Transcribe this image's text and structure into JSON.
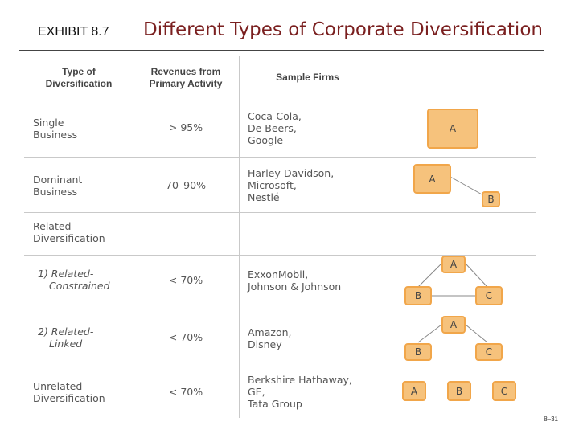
{
  "header": {
    "exhibit": "EXHIBIT 8.7",
    "title": "Different Types of Corporate Diversification"
  },
  "columns": {
    "type": [
      "Type of",
      "Diversification"
    ],
    "revenue": [
      "Revenues from",
      "Primary Activity"
    ],
    "firms": "Sample Firms"
  },
  "rows": [
    {
      "type": [
        "Single",
        "Business"
      ],
      "revenue": "> 95%",
      "firms": [
        "Coca-Cola,",
        "De Beers,",
        "Google"
      ],
      "boxes": [
        "A"
      ]
    },
    {
      "type": [
        "Dominant",
        "Business"
      ],
      "revenue": "70–90%",
      "firms": [
        "Harley-Davidson,",
        "Microsoft,",
        "Nestlé"
      ],
      "boxes": [
        "A",
        "B"
      ]
    },
    {
      "type": [
        "Related",
        "Diversification"
      ],
      "revenue": "",
      "firms": []
    },
    {
      "type": [
        "1) Related-",
        "Constrained"
      ],
      "revenue": "< 70%",
      "firms": [
        "ExxonMobil,",
        "Johnson & Johnson"
      ],
      "boxes": [
        "A",
        "B",
        "C"
      ]
    },
    {
      "type": [
        "2) Related-",
        "Linked"
      ],
      "revenue": "< 70%",
      "firms": [
        "Amazon,",
        "Disney"
      ],
      "boxes": [
        "A",
        "B",
        "C"
      ]
    },
    {
      "type": [
        "Unrelated",
        "Diversification"
      ],
      "revenue": "< 70%",
      "firms": [
        "Berkshire Hathaway,",
        "GE,",
        "Tata Group"
      ],
      "boxes": [
        "A",
        "B",
        "C"
      ]
    }
  ],
  "footer": {
    "page": "8–31"
  }
}
